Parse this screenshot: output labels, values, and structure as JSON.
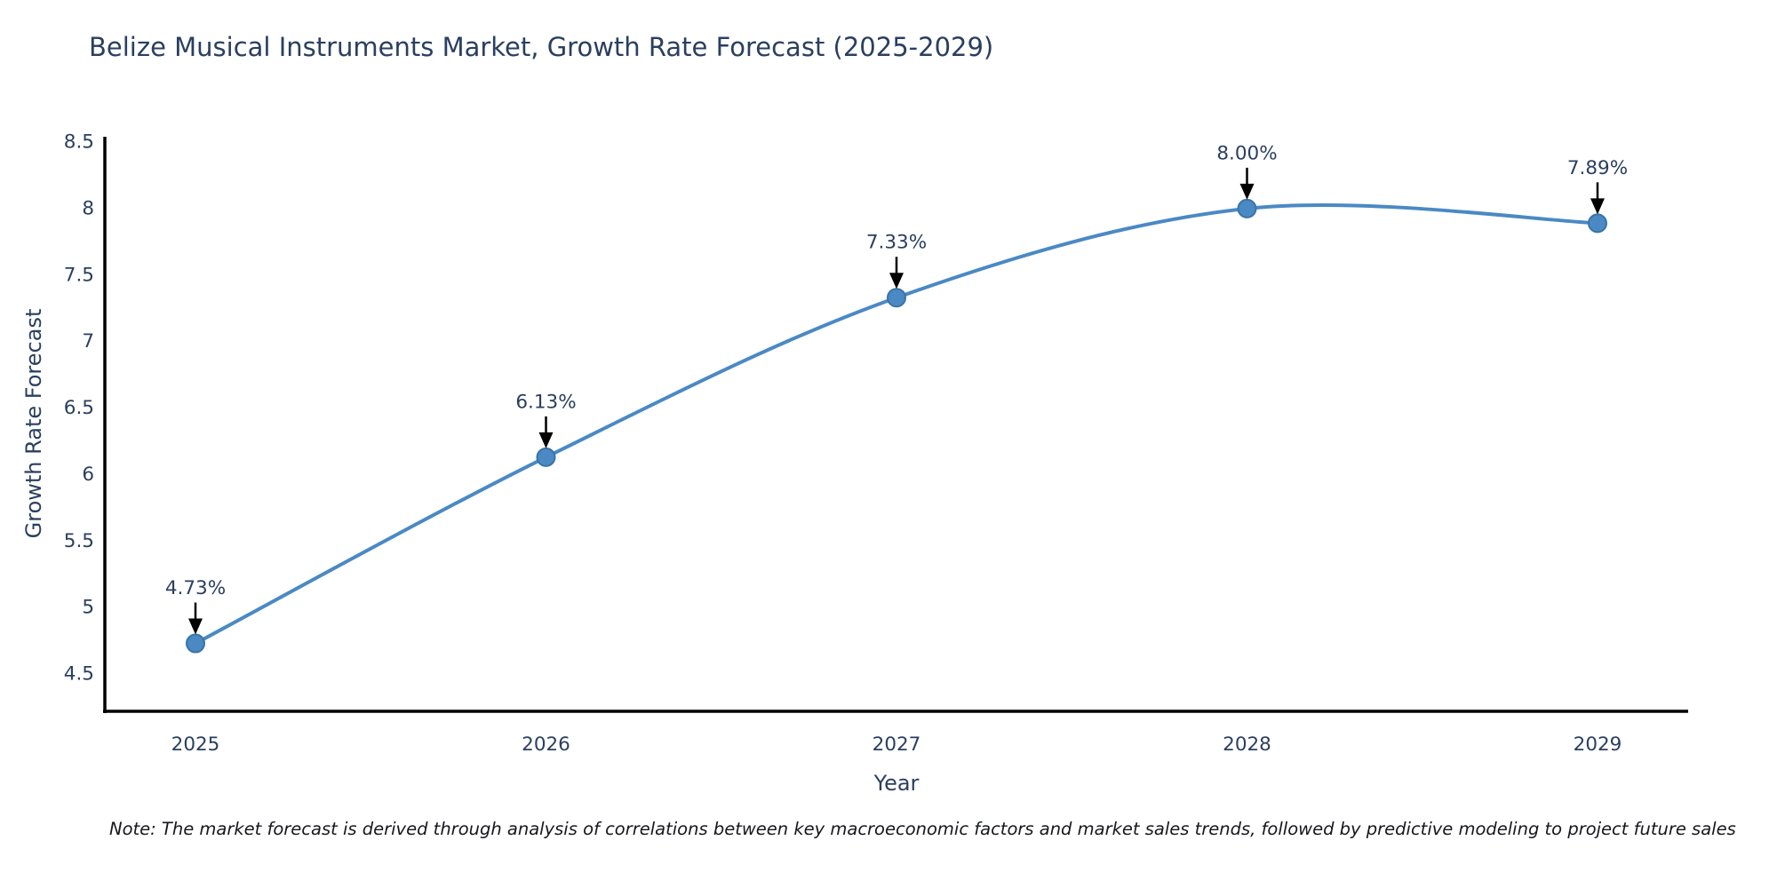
{
  "title": "Belize Musical Instruments Market, Growth Rate Forecast (2025-2029)",
  "note": "Note: The market forecast is derived through analysis of correlations between key macroeconomic factors and market sales trends, followed by predictive modeling to project future sales",
  "chart_data": {
    "type": "line",
    "x": [
      "2025",
      "2026",
      "2027",
      "2028",
      "2029"
    ],
    "values": [
      4.73,
      6.13,
      7.33,
      8.0,
      7.89
    ],
    "point_labels": [
      "4.73%",
      "6.13%",
      "7.33%",
      "8.00%",
      "7.89%"
    ],
    "title": "Belize Musical Instruments Market, Growth Rate Forecast (2025-2029)",
    "xlabel": "Year",
    "ylabel": "Growth Rate Forecast",
    "ytick_labels": [
      "4.5",
      "5",
      "5.5",
      "6",
      "6.5",
      "7",
      "7.5",
      "8",
      "8.5"
    ],
    "ylim": [
      4.22,
      8.55
    ],
    "grid": false,
    "legend": "none",
    "line_shape": "spline",
    "colors": {
      "line": "#4a89c4",
      "marker_fill": "#4a89c4",
      "marker_edge": "#3a74a6",
      "axis": "#000000",
      "text": "#2a3f5f",
      "annotation_text": "#2a3f5f",
      "annotation_arrow": "#000000",
      "note_text": "#16181d",
      "background": "#ffffff"
    }
  }
}
